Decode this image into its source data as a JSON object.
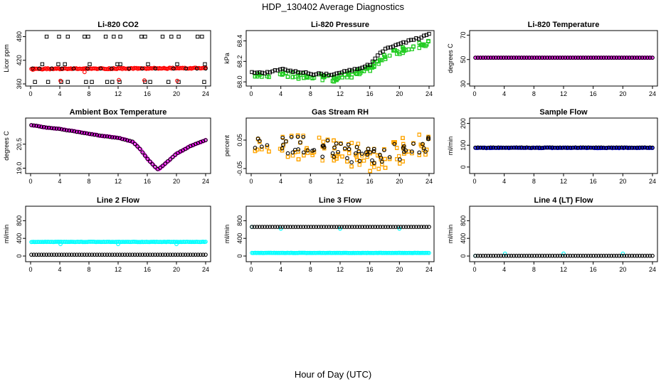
{
  "figure": {
    "title": "HDP_130402  Average Diagnostics",
    "xlabel": "Hour of Day (UTC)"
  },
  "colors": {
    "black": "#000000",
    "red": "#ff0000",
    "green": "#22cc22",
    "magenta": "#ff00ff",
    "orange": "#ffa500",
    "blue": "#0000ff",
    "cyan": "#00ffff"
  },
  "chart_data": [
    {
      "type": "scatter",
      "title": "Li-820 CO2",
      "ylabel": "Licor ppm",
      "xlim": [
        0,
        24
      ],
      "ylim": [
        360,
        490
      ],
      "xticks": [
        0,
        4,
        8,
        12,
        16,
        20,
        24
      ],
      "yticks": [
        360,
        420,
        480
      ],
      "series": [
        {
          "name": "flat",
          "color": "red",
          "gen": "flat",
          "n": 160,
          "y0": 398,
          "y1": 400,
          "noise": 1.5,
          "marker": "circle"
        },
        {
          "name": "top",
          "color": "black",
          "gen": "explicit",
          "marker": "square",
          "x": [
            2.2,
            3.9,
            5.1,
            7.4,
            7.9,
            10.3,
            11.4,
            12.3,
            15.2,
            15.7,
            18.1,
            19.3,
            20.3,
            22.9,
            23.5
          ],
          "y": [
            480,
            480,
            480,
            480,
            480,
            480,
            480,
            480,
            480,
            480,
            480,
            480,
            480,
            480,
            480
          ]
        },
        {
          "name": "mid",
          "color": "black",
          "gen": "explicit",
          "marker": "square",
          "x": [
            1.6,
            3.8,
            4.7,
            8.1,
            11.9,
            12.3,
            16.1,
            20.1,
            23.9
          ],
          "y": [
            410,
            410,
            410,
            410,
            410,
            410,
            410,
            410,
            410
          ]
        },
        {
          "name": "bottom",
          "color": "black",
          "gen": "explicit",
          "marker": "square",
          "x": [
            0.6,
            2.4,
            4.2,
            5.1,
            7.6,
            8.4,
            10.5,
            11.2,
            12.2,
            15.7,
            16.4,
            18.9,
            20.3,
            23.8
          ],
          "y": [
            365,
            365,
            365,
            365,
            365,
            365,
            365,
            365,
            365,
            365,
            365,
            365,
            365,
            365
          ]
        },
        {
          "name": "black-at-flat",
          "color": "black",
          "gen": "explicit",
          "marker": "circle",
          "x": [
            0.3,
            1.2,
            2.9,
            4.3,
            5.9,
            7.8,
            9.6,
            11.1,
            13.5,
            15.3,
            17.1,
            19.6,
            21.3,
            22.8,
            24.0
          ],
          "y": [
            399,
            399,
            399,
            399,
            399,
            399,
            399,
            399,
            399,
            399,
            399,
            399,
            399,
            399,
            399
          ]
        },
        {
          "name": "red-low",
          "color": "red",
          "gen": "explicit",
          "marker": "circle",
          "x": [
            0.3,
            4.1,
            7.4,
            12.1,
            15.6,
            20.1
          ],
          "y": [
            396,
            368,
            390,
            370,
            369,
            368
          ]
        }
      ]
    },
    {
      "type": "scatter",
      "title": "Li-820 Pressure",
      "ylabel": "kPa",
      "xlim": [
        0,
        24
      ],
      "ylim": [
        67.98,
        68.48
      ],
      "xticks": [
        0,
        4,
        8,
        12,
        16,
        20,
        24
      ],
      "yticks": [
        68.0,
        68.2,
        68.4
      ],
      "ytick_labels": [
        "68.0",
        "68.2",
        "68.4"
      ],
      "series": [
        {
          "name": "green",
          "color": "green",
          "gen": "band",
          "n": 520,
          "marker": "square",
          "x": [
            0,
            2,
            4,
            6,
            8,
            10,
            11,
            12,
            14,
            16,
            18,
            20,
            22,
            24
          ],
          "y": [
            68.06,
            68.05,
            68.08,
            68.06,
            68.05,
            68.04,
            68.02,
            68.05,
            68.08,
            68.13,
            68.24,
            68.3,
            68.34,
            68.38
          ],
          "spread": 0.03
        },
        {
          "name": "black",
          "color": "black",
          "gen": "curve",
          "n": 70,
          "marker": "square",
          "x": [
            0,
            2,
            4,
            6,
            8,
            10,
            11,
            12,
            14,
            16,
            18,
            20,
            22,
            24
          ],
          "y": [
            68.09,
            68.09,
            68.12,
            68.1,
            68.08,
            68.07,
            68.07,
            68.09,
            68.12,
            68.17,
            68.32,
            68.37,
            68.41,
            68.46
          ],
          "noise": 0.01
        }
      ]
    },
    {
      "type": "scatter",
      "title": "Li-820 Temperature",
      "ylabel": "degrees C",
      "xlim": [
        0,
        24
      ],
      "ylim": [
        30,
        72
      ],
      "xticks": [
        0,
        4,
        8,
        12,
        16,
        20,
        24
      ],
      "yticks": [
        30,
        50,
        70
      ],
      "series": [
        {
          "name": "magenta",
          "color": "magenta",
          "gen": "flat",
          "n": 160,
          "y0": 51.5,
          "y1": 51.5,
          "noise": 0,
          "marker": "circle"
        },
        {
          "name": "black",
          "color": "black",
          "gen": "flat",
          "n": 70,
          "y0": 51.5,
          "y1": 51.5,
          "noise": 0,
          "marker": "circle"
        }
      ]
    },
    {
      "type": "scatter",
      "title": "Ambient Box Temperature",
      "ylabel": "degrees C",
      "xlim": [
        0,
        24
      ],
      "ylim": [
        18.8,
        22.0
      ],
      "xticks": [
        0,
        4,
        8,
        12,
        16,
        20,
        24
      ],
      "yticks": [
        19.0,
        20.5
      ],
      "ytick_labels": [
        "19.0",
        "20.5"
      ],
      "series": [
        {
          "name": "magenta",
          "color": "magenta",
          "gen": "curve",
          "n": 150,
          "marker": "circle",
          "x": [
            0,
            2,
            4,
            6,
            8,
            10,
            12,
            14,
            15,
            16,
            17,
            17.5,
            18,
            20,
            22,
            24
          ],
          "y": [
            21.7,
            21.55,
            21.45,
            21.3,
            21.15,
            21.0,
            20.9,
            20.65,
            20.2,
            19.6,
            19.1,
            18.92,
            19.1,
            19.9,
            20.4,
            20.75
          ],
          "noise": 0.02
        },
        {
          "name": "black",
          "color": "black",
          "gen": "curve",
          "n": 70,
          "marker": "circle",
          "x": [
            0,
            2,
            4,
            6,
            8,
            10,
            12,
            14,
            15,
            16,
            17,
            17.5,
            18,
            20,
            22,
            24
          ],
          "y": [
            21.7,
            21.55,
            21.45,
            21.3,
            21.15,
            21.0,
            20.9,
            20.65,
            20.2,
            19.6,
            19.1,
            18.92,
            19.1,
            19.9,
            20.4,
            20.75
          ],
          "noise": 0.01
        }
      ]
    },
    {
      "type": "scatter",
      "title": "Gas Stream RH",
      "ylabel": "percent",
      "xlim": [
        0,
        24
      ],
      "ylim": [
        -0.06,
        0.12
      ],
      "xticks": [
        0,
        4,
        8,
        12,
        16,
        20,
        24
      ],
      "yticks": [
        -0.05,
        0.05
      ],
      "ytick_labels": [
        "-0.05",
        "0.05"
      ],
      "series": [
        {
          "name": "orange",
          "color": "orange",
          "gen": "band",
          "n": 480,
          "marker": "square",
          "x": [
            0,
            4,
            8,
            12,
            14,
            16,
            18,
            20,
            22,
            24
          ],
          "y": [
            0.02,
            0.025,
            0.02,
            0.01,
            0.0,
            -0.02,
            -0.02,
            0.01,
            0.03,
            0.03
          ],
          "spread": 0.045
        },
        {
          "name": "black",
          "color": "black",
          "gen": "band",
          "n": 70,
          "marker": "circle",
          "x": [
            0,
            4,
            8,
            12,
            14,
            16,
            18,
            20,
            22,
            24
          ],
          "y": [
            0.03,
            0.03,
            0.025,
            0.015,
            0.005,
            -0.01,
            -0.015,
            0.015,
            0.03,
            0.035
          ],
          "spread": 0.035
        }
      ]
    },
    {
      "type": "scatter",
      "title": "Sample Flow",
      "ylabel": "ml/min",
      "xlim": [
        0,
        24
      ],
      "ylim": [
        -20,
        215
      ],
      "xticks": [
        0,
        4,
        8,
        12,
        16,
        20,
        24
      ],
      "yticks": [
        0,
        100,
        200
      ],
      "series": [
        {
          "name": "blue",
          "color": "blue",
          "gen": "flat",
          "n": 160,
          "y0": 88,
          "y1": 88,
          "noise": 1.5,
          "marker": "circle"
        },
        {
          "name": "black",
          "color": "black",
          "gen": "flat",
          "n": 70,
          "y0": 89,
          "y1": 89,
          "noise": 1,
          "marker": "circle"
        }
      ]
    },
    {
      "type": "scatter",
      "title": "Line 2 Flow",
      "ylabel": "ml/min",
      "xlim": [
        0,
        24
      ],
      "ylim": [
        -80,
        1080
      ],
      "xticks": [
        0,
        4,
        8,
        12,
        16,
        20,
        24
      ],
      "yticks": [
        0,
        400,
        800
      ],
      "series": [
        {
          "name": "cyan",
          "color": "cyan",
          "gen": "flat",
          "n": 160,
          "y0": 320,
          "y1": 320,
          "noise": 4,
          "marker": "circle"
        },
        {
          "name": "cyan-dips",
          "color": "cyan",
          "gen": "explicit",
          "marker": "circle",
          "x": [
            4.1,
            12.0,
            20.0
          ],
          "y": [
            270,
            270,
            270
          ]
        },
        {
          "name": "black",
          "color": "black",
          "gen": "flat",
          "n": 70,
          "y0": 30,
          "y1": 30,
          "noise": 0,
          "marker": "circle"
        }
      ]
    },
    {
      "type": "scatter",
      "title": "Line 3 Flow",
      "ylabel": "ml/min",
      "xlim": [
        0,
        24
      ],
      "ylim": [
        -80,
        1080
      ],
      "xticks": [
        0,
        4,
        8,
        12,
        16,
        20,
        24
      ],
      "yticks": [
        0,
        400,
        800
      ],
      "series": [
        {
          "name": "cyan",
          "color": "cyan",
          "gen": "flat",
          "n": 160,
          "y0": 70,
          "y1": 70,
          "noise": 3,
          "marker": "circle"
        },
        {
          "name": "cyan-top",
          "color": "cyan",
          "gen": "explicit",
          "marker": "circle",
          "x": [
            0.1,
            4.0,
            12.0,
            20.0
          ],
          "y": [
            660,
            620,
            620,
            620
          ]
        },
        {
          "name": "black",
          "color": "black",
          "gen": "flat",
          "n": 70,
          "y0": 660,
          "y1": 660,
          "noise": 0,
          "marker": "circle"
        }
      ]
    },
    {
      "type": "scatter",
      "title": "Line 4 (LT) Flow",
      "ylabel": "ml/min",
      "xlim": [
        0,
        24
      ],
      "ylim": [
        -80,
        1080
      ],
      "xticks": [
        0,
        4,
        8,
        12,
        16,
        20,
        24
      ],
      "yticks": [
        0,
        400,
        800
      ],
      "series": [
        {
          "name": "cyan",
          "color": "cyan",
          "gen": "explicit",
          "marker": "circle",
          "x": [
            0.1,
            4.1,
            12.0,
            20.0
          ],
          "y": [
            5,
            55,
            55,
            55
          ]
        },
        {
          "name": "black",
          "color": "black",
          "gen": "flat",
          "n": 70,
          "y0": 5,
          "y1": 5,
          "noise": 0,
          "marker": "circle"
        }
      ]
    }
  ]
}
